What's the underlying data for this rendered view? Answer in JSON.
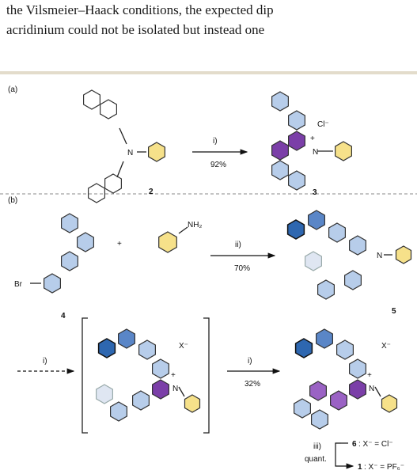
{
  "prose": {
    "line1": "the Vilsmeier–Haack conditions, the expected dip",
    "line2": "acridinium could not be isolated but instead one"
  },
  "scheme": {
    "panel_a": "(a)",
    "panel_b": "(b)",
    "compounds": {
      "c2": "2",
      "c3": "3",
      "c4": "4",
      "c5": "5"
    },
    "atoms": {
      "n": "N",
      "plus": "+",
      "cl_minus": "Cl⁻",
      "br": "Br",
      "nh2": "NH₂",
      "x_minus": "X⁻"
    },
    "arrows": {
      "a_reagent": "i)",
      "a_yield": "92%",
      "b_reagent": "ii)",
      "b_yield": "70%",
      "dash_reagent": "i)",
      "c_reagent": "i)",
      "c_yield": "32%"
    },
    "salts": {
      "reagent": "iii)",
      "quant": "quant.",
      "cmp6": "6",
      "anion6": ": X⁻ = Cl⁻",
      "cmp1": "1",
      "anion1": ": X⁻ = PF₆⁻"
    }
  },
  "colors": {
    "phenyl": "#f6e18a",
    "light_blue": "#b7cdea",
    "mid_blue": "#5a86c7",
    "dark_blue": "#2e67b0",
    "purple": "#7b3fa8",
    "light_purple": "#9a62c4",
    "pale_blue": "#dfe6f2"
  }
}
